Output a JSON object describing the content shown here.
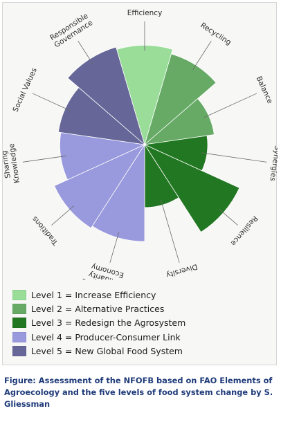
{
  "chart_data": {
    "type": "polar-area",
    "max_value": 5,
    "elements": [
      {
        "label": [
          "Efficiency"
        ],
        "value": 4.1,
        "level": 1
      },
      {
        "label": [
          "Recycling"
        ],
        "value": 3.9,
        "level": 2
      },
      {
        "label": [
          "Balance"
        ],
        "value": 2.9,
        "level": 2
      },
      {
        "label": [
          "Synergies"
        ],
        "value": 2.6,
        "level": 3
      },
      {
        "label": [
          "Resilience"
        ],
        "value": 4.3,
        "level": 3
      },
      {
        "label": [
          "Diversity"
        ],
        "value": 2.6,
        "level": 3
      },
      {
        "label": [
          "Circular and",
          "Solidarity",
          "Economy"
        ],
        "value": 4.0,
        "level": 4
      },
      {
        "label": [
          "Traditions"
        ],
        "value": 4.1,
        "level": 4
      },
      {
        "label": [
          "Sharing",
          "Knowledge"
        ],
        "value": 3.5,
        "level": 4
      },
      {
        "label": [
          "Social Values"
        ],
        "value": 3.6,
        "level": 5
      },
      {
        "label": [
          "Responsible",
          "Governance"
        ],
        "value": 4.2,
        "level": 5
      }
    ],
    "legend": [
      {
        "level": 1,
        "label": "Level 1 = Increase Efficiency",
        "color": "#99dd99"
      },
      {
        "level": 2,
        "label": "Level 2 = Alternative Practices",
        "color": "#66aa66"
      },
      {
        "level": 3,
        "label": "Level 3 = Redesign the Agrosystem",
        "color": "#227722"
      },
      {
        "level": 4,
        "label": "Level 4 = Producer-Consumer Link",
        "color": "#9999dd"
      },
      {
        "level": 5,
        "label": "Level 5 = New Global Food System",
        "color": "#666699"
      }
    ]
  },
  "caption": "Figure: Assessment of the NFOFB based on FAO Elements of Agroecology and the five levels of food system change by S. Gliessman"
}
